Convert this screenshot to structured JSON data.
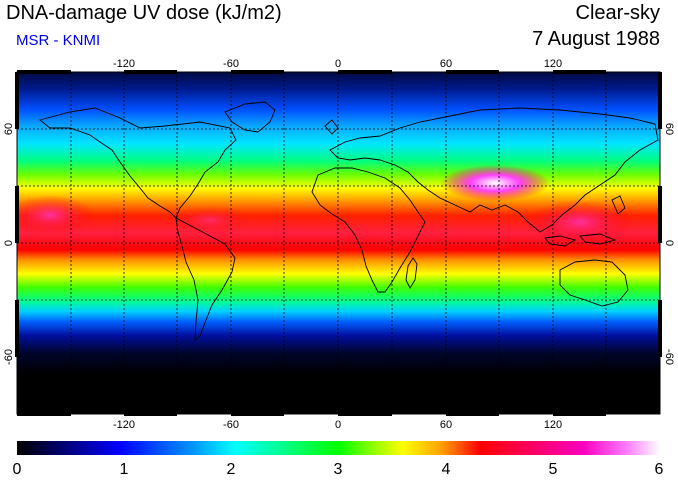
{
  "header": {
    "title": "DNA-damage UV dose (kJ/m2)",
    "source": "MSR - KNMI",
    "sky_condition": "Clear-sky",
    "date": "7 August 1988"
  },
  "map": {
    "longitude_ticks": [
      "-120",
      "-60",
      "0",
      "60",
      "120"
    ],
    "latitude_ticks_left": [
      "60",
      "0",
      "-60"
    ],
    "latitude_ticks_right": [
      "60",
      "0",
      "-60"
    ],
    "colorbar": {
      "labels": [
        "0",
        "1",
        "2",
        "3",
        "4",
        "5",
        "6"
      ],
      "min": 0,
      "max": 6,
      "colors": [
        "#000000",
        "#000080",
        "#0000ff",
        "#0090ff",
        "#00ffff",
        "#00ff80",
        "#00ff00",
        "#a0ff00",
        "#ffff00",
        "#ffa000",
        "#ff0000",
        "#ff0060",
        "#ff00c0",
        "#ff80ff",
        "#ffffff"
      ]
    }
  }
}
